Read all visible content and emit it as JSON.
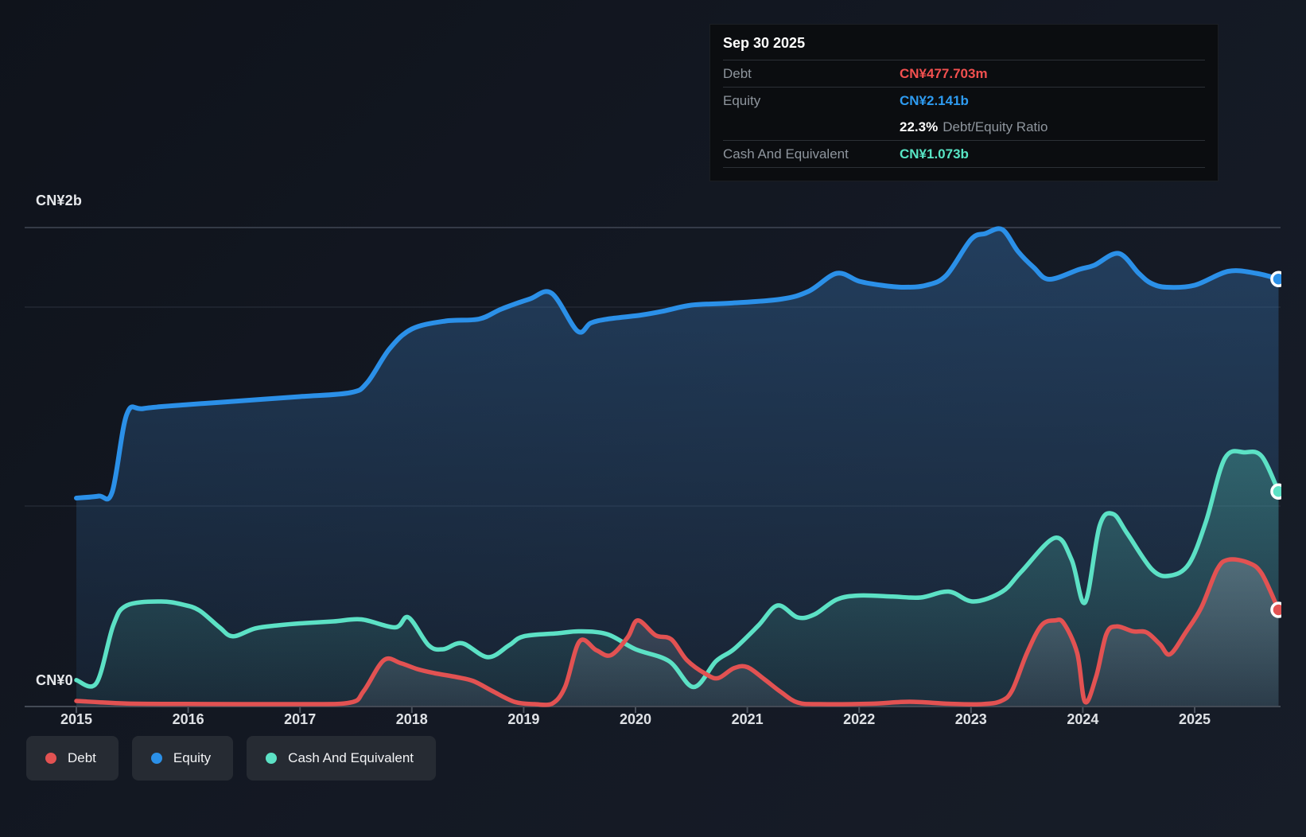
{
  "y_axis": {
    "top_label": "CN¥2b",
    "zero_label": "CN¥0"
  },
  "tooltip": {
    "date": "Sep 30 2025",
    "debt_label": "Debt",
    "debt_value": "CN¥477.703m",
    "debt_color": "#f2504f",
    "equity_label": "Equity",
    "equity_value": "CN¥2.141b",
    "equity_color": "#2e9bf0",
    "ratio_value": "22.3%",
    "ratio_label": "Debt/Equity Ratio",
    "cash_label": "Cash And Equivalent",
    "cash_value": "CN¥1.073b",
    "cash_color": "#58e4c4"
  },
  "legend": {
    "items": [
      {
        "label": "Debt",
        "color": "#e25252"
      },
      {
        "label": "Equity",
        "color": "#2b90e8"
      },
      {
        "label": "Cash And Equivalent",
        "color": "#5ce1c5"
      }
    ]
  },
  "chart_data": {
    "type": "area",
    "x_axis": {
      "years": [
        2015,
        2016,
        2017,
        2018,
        2019,
        2020,
        2021,
        2022,
        2023,
        2024,
        2025
      ]
    },
    "y_axis": {
      "unit": "CN¥ billions",
      "ylim_b": [
        0,
        2.4
      ],
      "gridline_values_b": [
        2.0,
        1.0
      ]
    },
    "series": [
      {
        "name": "Equity",
        "color": "#2b90e8",
        "width": 6,
        "points": [
          [
            2015.0,
            1.04
          ],
          [
            2015.2,
            1.05
          ],
          [
            2015.32,
            1.07
          ],
          [
            2015.45,
            1.46
          ],
          [
            2015.6,
            1.49
          ],
          [
            2016.0,
            1.51
          ],
          [
            2016.5,
            1.53
          ],
          [
            2017.0,
            1.55
          ],
          [
            2017.45,
            1.57
          ],
          [
            2017.6,
            1.62
          ],
          [
            2017.8,
            1.79
          ],
          [
            2018.0,
            1.89
          ],
          [
            2018.3,
            1.93
          ],
          [
            2018.6,
            1.94
          ],
          [
            2018.8,
            1.99
          ],
          [
            2019.05,
            2.04
          ],
          [
            2019.25,
            2.07
          ],
          [
            2019.48,
            1.88
          ],
          [
            2019.6,
            1.92
          ],
          [
            2019.75,
            1.94
          ],
          [
            2020.05,
            1.96
          ],
          [
            2020.25,
            1.98
          ],
          [
            2020.5,
            2.01
          ],
          [
            2020.85,
            2.02
          ],
          [
            2021.3,
            2.04
          ],
          [
            2021.55,
            2.08
          ],
          [
            2021.8,
            2.17
          ],
          [
            2022.0,
            2.13
          ],
          [
            2022.2,
            2.11
          ],
          [
            2022.4,
            2.1
          ],
          [
            2022.6,
            2.11
          ],
          [
            2022.78,
            2.16
          ],
          [
            2023.0,
            2.34
          ],
          [
            2023.13,
            2.37
          ],
          [
            2023.28,
            2.39
          ],
          [
            2023.42,
            2.28
          ],
          [
            2023.56,
            2.2
          ],
          [
            2023.7,
            2.14
          ],
          [
            2023.97,
            2.19
          ],
          [
            2024.1,
            2.21
          ],
          [
            2024.32,
            2.27
          ],
          [
            2024.5,
            2.17
          ],
          [
            2024.61,
            2.12
          ],
          [
            2024.75,
            2.1
          ],
          [
            2025.0,
            2.11
          ],
          [
            2025.3,
            2.18
          ],
          [
            2025.55,
            2.17
          ],
          [
            2025.75,
            2.141
          ]
        ]
      },
      {
        "name": "Cash And Equivalent",
        "color": "#5ce1c5",
        "width": 5.5,
        "points": [
          [
            2015.0,
            0.125
          ],
          [
            2015.18,
            0.11
          ],
          [
            2015.33,
            0.4
          ],
          [
            2015.45,
            0.5
          ],
          [
            2015.75,
            0.52
          ],
          [
            2015.95,
            0.505
          ],
          [
            2016.1,
            0.475
          ],
          [
            2016.28,
            0.39
          ],
          [
            2016.4,
            0.345
          ],
          [
            2016.6,
            0.385
          ],
          [
            2016.8,
            0.4
          ],
          [
            2017.0,
            0.41
          ],
          [
            2017.3,
            0.42
          ],
          [
            2017.55,
            0.43
          ],
          [
            2017.85,
            0.39
          ],
          [
            2017.97,
            0.44
          ],
          [
            2018.15,
            0.3
          ],
          [
            2018.28,
            0.28
          ],
          [
            2018.45,
            0.31
          ],
          [
            2018.68,
            0.24
          ],
          [
            2018.87,
            0.3
          ],
          [
            2019.0,
            0.345
          ],
          [
            2019.3,
            0.36
          ],
          [
            2019.5,
            0.37
          ],
          [
            2019.75,
            0.355
          ],
          [
            2020.0,
            0.28
          ],
          [
            2020.3,
            0.22
          ],
          [
            2020.52,
            0.09
          ],
          [
            2020.72,
            0.22
          ],
          [
            2020.88,
            0.28
          ],
          [
            2021.1,
            0.4
          ],
          [
            2021.27,
            0.5
          ],
          [
            2021.45,
            0.44
          ],
          [
            2021.6,
            0.455
          ],
          [
            2021.8,
            0.53
          ],
          [
            2022.0,
            0.55
          ],
          [
            2022.3,
            0.545
          ],
          [
            2022.55,
            0.54
          ],
          [
            2022.8,
            0.57
          ],
          [
            2023.02,
            0.52
          ],
          [
            2023.28,
            0.57
          ],
          [
            2023.45,
            0.67
          ],
          [
            2023.75,
            0.84
          ],
          [
            2023.9,
            0.73
          ],
          [
            2024.02,
            0.515
          ],
          [
            2024.15,
            0.9
          ],
          [
            2024.27,
            0.96
          ],
          [
            2024.4,
            0.86
          ],
          [
            2024.62,
            0.68
          ],
          [
            2024.78,
            0.65
          ],
          [
            2024.95,
            0.71
          ],
          [
            2025.1,
            0.92
          ],
          [
            2025.27,
            1.24
          ],
          [
            2025.45,
            1.27
          ],
          [
            2025.6,
            1.25
          ],
          [
            2025.75,
            1.073
          ]
        ]
      },
      {
        "name": "Debt",
        "color": "#e25252",
        "width": 5.5,
        "points": [
          [
            2015.0,
            0.02
          ],
          [
            2015.45,
            0.007
          ],
          [
            2016.0,
            0.005
          ],
          [
            2017.0,
            0.004
          ],
          [
            2017.45,
            0.012
          ],
          [
            2017.57,
            0.07
          ],
          [
            2017.75,
            0.225
          ],
          [
            2017.9,
            0.21
          ],
          [
            2018.05,
            0.18
          ],
          [
            2018.2,
            0.16
          ],
          [
            2018.4,
            0.14
          ],
          [
            2018.55,
            0.12
          ],
          [
            2018.72,
            0.07
          ],
          [
            2018.92,
            0.015
          ],
          [
            2019.1,
            0.004
          ],
          [
            2019.25,
            0.005
          ],
          [
            2019.37,
            0.09
          ],
          [
            2019.5,
            0.32
          ],
          [
            2019.65,
            0.275
          ],
          [
            2019.78,
            0.25
          ],
          [
            2019.93,
            0.34
          ],
          [
            2020.02,
            0.425
          ],
          [
            2020.18,
            0.35
          ],
          [
            2020.32,
            0.33
          ],
          [
            2020.46,
            0.225
          ],
          [
            2020.63,
            0.155
          ],
          [
            2020.74,
            0.135
          ],
          [
            2020.88,
            0.185
          ],
          [
            2021.0,
            0.19
          ],
          [
            2021.15,
            0.13
          ],
          [
            2021.3,
            0.065
          ],
          [
            2021.45,
            0.012
          ],
          [
            2021.65,
            0.004
          ],
          [
            2022.1,
            0.006
          ],
          [
            2022.45,
            0.016
          ],
          [
            2022.8,
            0.006
          ],
          [
            2023.1,
            0.004
          ],
          [
            2023.27,
            0.02
          ],
          [
            2023.37,
            0.075
          ],
          [
            2023.5,
            0.26
          ],
          [
            2023.63,
            0.4
          ],
          [
            2023.75,
            0.425
          ],
          [
            2023.83,
            0.41
          ],
          [
            2023.95,
            0.26
          ],
          [
            2024.02,
            0.015
          ],
          [
            2024.12,
            0.145
          ],
          [
            2024.21,
            0.355
          ],
          [
            2024.3,
            0.395
          ],
          [
            2024.45,
            0.37
          ],
          [
            2024.57,
            0.365
          ],
          [
            2024.69,
            0.305
          ],
          [
            2024.78,
            0.255
          ],
          [
            2024.92,
            0.365
          ],
          [
            2025.06,
            0.49
          ],
          [
            2025.2,
            0.68
          ],
          [
            2025.3,
            0.73
          ],
          [
            2025.48,
            0.715
          ],
          [
            2025.6,
            0.66
          ],
          [
            2025.75,
            0.478
          ]
        ]
      }
    ],
    "end_markers": [
      {
        "series": "Equity",
        "year": 2025.75,
        "value_b": 2.141,
        "color": "#2b90e8"
      },
      {
        "series": "Cash And Equivalent",
        "year": 2025.75,
        "value_b": 1.073,
        "color": "#5ce1c5"
      },
      {
        "series": "Debt",
        "year": 2025.75,
        "value_b": 0.478,
        "color": "#e25252"
      }
    ]
  }
}
